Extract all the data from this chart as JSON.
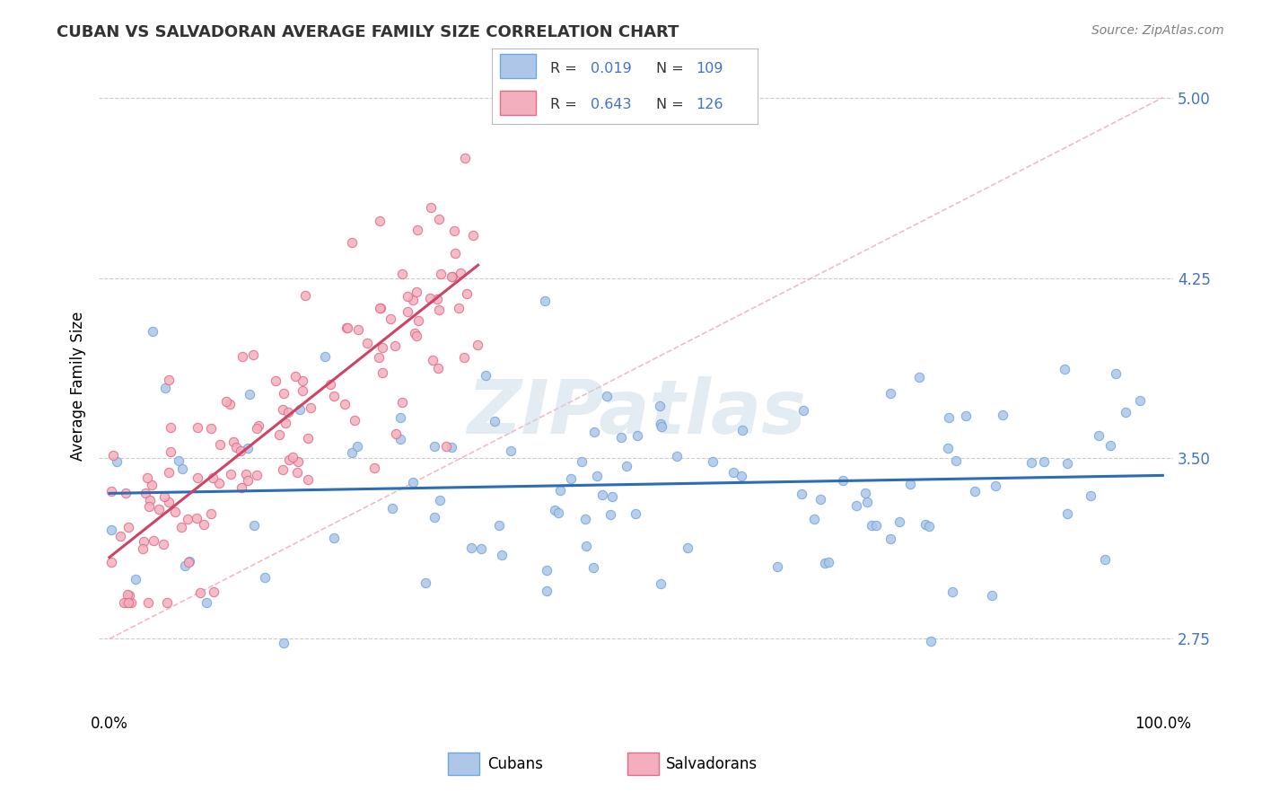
{
  "title": "CUBAN VS SALVADORAN AVERAGE FAMILY SIZE CORRELATION CHART",
  "source_text": "Source: ZipAtlas.com",
  "ylabel": "Average Family Size",
  "ymin": 2.45,
  "ymax": 5.15,
  "xmin": -0.01,
  "xmax": 1.01,
  "yticks": [
    2.75,
    3.5,
    4.25,
    5.0
  ],
  "xticks": [
    0.0,
    1.0
  ],
  "xticklabels": [
    "0.0%",
    "100.0%"
  ],
  "yticklabel_color": "#4472C4",
  "title_color": "#333333",
  "background_color": "#FFFFFF",
  "grid_color": "#CCCCCC",
  "cuban_color": "#AEC6E8",
  "cuban_edge_color": "#6FA8DC",
  "salvadoran_color": "#F4AFBE",
  "salvadoran_edge_color": "#E06B8B",
  "cuban_R": 0.019,
  "cuban_N": 109,
  "salvadoran_R": 0.643,
  "salvadoran_N": 126,
  "trend_blue_color": "#2E6DB4",
  "trend_pink_color": "#CC4466",
  "diag_color": "#E8A0B0",
  "watermark_color": "#C8D8E8",
  "legend_R_color": "#4472C4",
  "legend_N_color": "#4472C4",
  "legend_text_color": "#333333"
}
